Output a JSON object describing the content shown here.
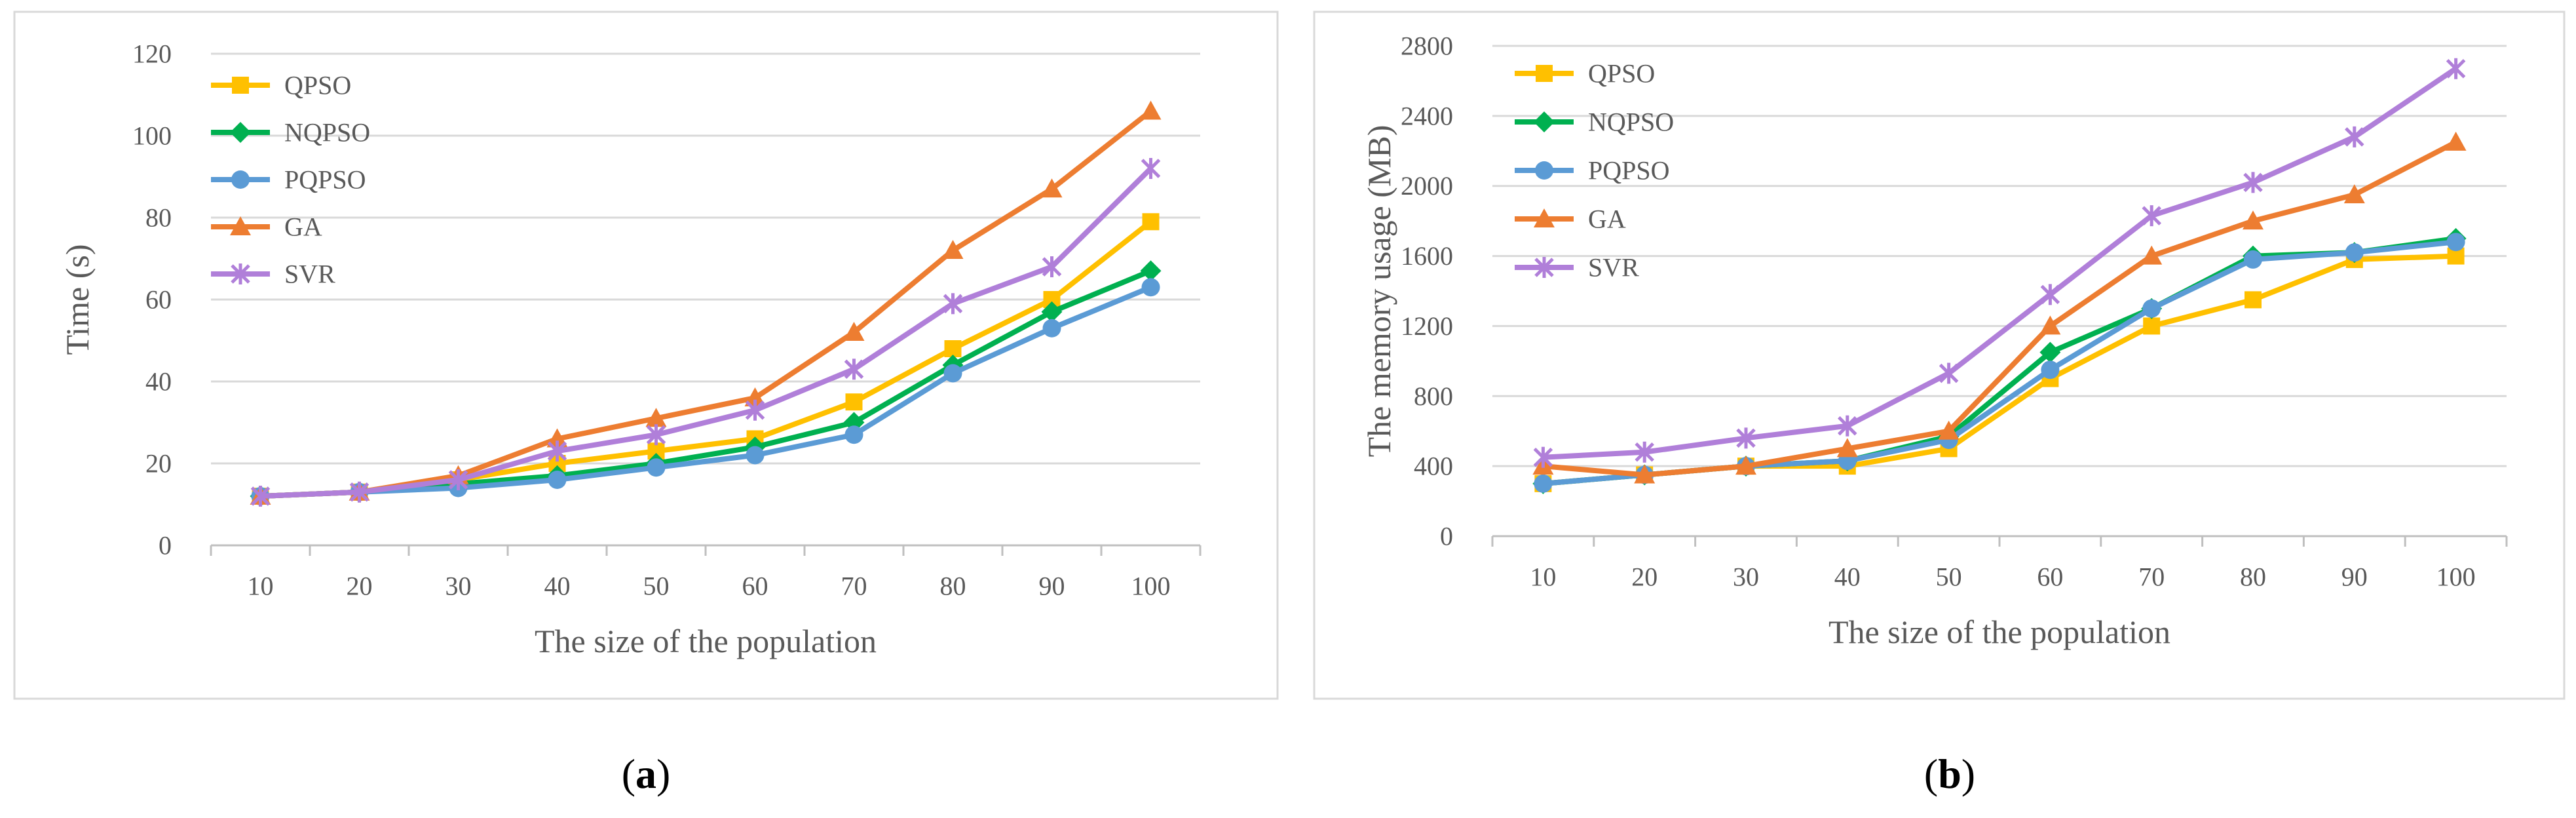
{
  "chart_data": [
    {
      "type": "line",
      "panel_label": "a",
      "title": "",
      "xlabel": "The  size of the population",
      "ylabel": "Time (s)",
      "categories": [
        "10",
        "20",
        "30",
        "40",
        "50",
        "60",
        "70",
        "80",
        "90",
        "100"
      ],
      "ylim": [
        0,
        120
      ],
      "yticks": [
        "0",
        "20",
        "40",
        "60",
        "80",
        "100",
        "120"
      ],
      "grid": true,
      "legend": "top-left",
      "series": [
        {
          "name": "QPSO",
          "color": "#FFC000",
          "marker": "square",
          "values": [
            12,
            13,
            16,
            20,
            23,
            26,
            35,
            48,
            60,
            79
          ]
        },
        {
          "name": "NQPSO",
          "color": "#00B050",
          "marker": "diamond",
          "values": [
            12,
            13,
            15,
            17,
            20,
            24,
            30,
            44,
            57,
            67
          ]
        },
        {
          "name": "PQPSO",
          "color": "#5B9BD5",
          "marker": "circle",
          "values": [
            12,
            13,
            14,
            16,
            19,
            22,
            27,
            42,
            53,
            63
          ]
        },
        {
          "name": "GA",
          "color": "#ED7D31",
          "marker": "triangle",
          "values": [
            12,
            13,
            17,
            26,
            31,
            36,
            52,
            72,
            87,
            106
          ]
        },
        {
          "name": "SVR",
          "color": "#B07FD9",
          "marker": "star",
          "values": [
            12,
            13,
            16,
            23,
            27,
            33,
            43,
            59,
            68,
            92
          ]
        }
      ]
    },
    {
      "type": "line",
      "panel_label": "b",
      "title": "",
      "xlabel": "The size of the population",
      "ylabel": "The memory usage (MB)",
      "categories": [
        "10",
        "20",
        "30",
        "40",
        "50",
        "60",
        "70",
        "80",
        "90",
        "100"
      ],
      "ylim": [
        0,
        2800
      ],
      "yticks": [
        "0",
        "400",
        "800",
        "1200",
        "1600",
        "2000",
        "2400",
        "2800"
      ],
      "grid": true,
      "legend": "top-left",
      "series": [
        {
          "name": "QPSO",
          "color": "#FFC000",
          "marker": "square",
          "values": [
            300,
            350,
            400,
            400,
            500,
            900,
            1200,
            1350,
            1580,
            1600
          ]
        },
        {
          "name": "NQPSO",
          "color": "#00B050",
          "marker": "diamond",
          "values": [
            300,
            350,
            400,
            430,
            570,
            1050,
            1300,
            1600,
            1620,
            1700
          ]
        },
        {
          "name": "PQPSO",
          "color": "#5B9BD5",
          "marker": "circle",
          "values": [
            300,
            350,
            400,
            430,
            550,
            950,
            1300,
            1580,
            1620,
            1680
          ]
        },
        {
          "name": "GA",
          "color": "#ED7D31",
          "marker": "triangle",
          "values": [
            400,
            350,
            400,
            500,
            600,
            1200,
            1600,
            1800,
            1950,
            2250
          ]
        },
        {
          "name": "SVR",
          "color": "#B07FD9",
          "marker": "star",
          "values": [
            450,
            480,
            560,
            630,
            930,
            1380,
            1830,
            2020,
            2280,
            2670
          ]
        }
      ]
    }
  ]
}
